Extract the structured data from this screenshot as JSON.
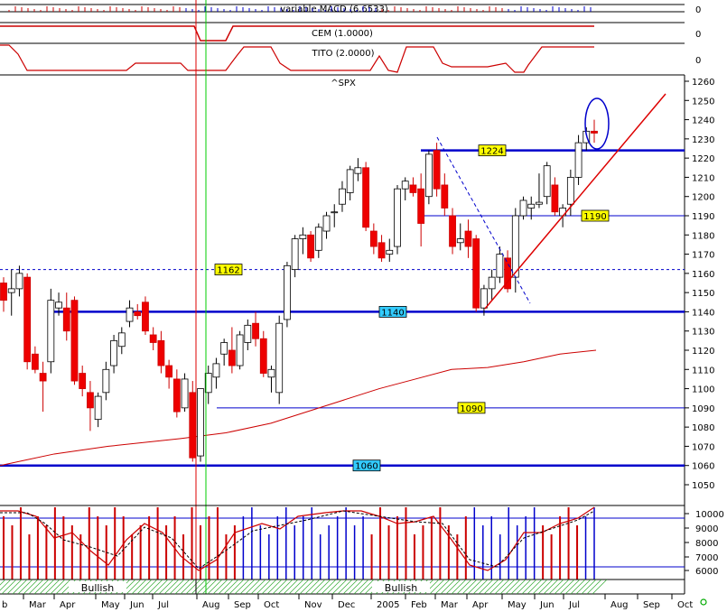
{
  "chart_data": {
    "type": "candlestick",
    "title": "^SPX",
    "indicators": [
      {
        "name": "variable MACD (6.6533)",
        "scale_label": "0"
      },
      {
        "name": "CEM (1.0000)",
        "scale_label": "0"
      },
      {
        "name": "TITO (2.0000)",
        "scale_label": "0"
      }
    ],
    "price_axis": {
      "ylim": [
        1040,
        1262
      ],
      "ticks": [
        1050,
        1060,
        1070,
        1080,
        1090,
        1100,
        1110,
        1120,
        1130,
        1140,
        1150,
        1160,
        1170,
        1180,
        1190,
        1200,
        1210,
        1220,
        1230,
        1240,
        1250,
        1260
      ]
    },
    "volume_axis": {
      "ticks": [
        "10000",
        "9000",
        "8000",
        "7000",
        "6000"
      ]
    },
    "x_labels": [
      "b",
      "Mar",
      "Apr",
      "May",
      "Jun",
      "Jul",
      "Aug",
      "Sep",
      "Oct",
      "Nov",
      "Dec",
      "2005",
      "Feb",
      "Mar",
      "Apr",
      "May",
      "Jun",
      "Jul",
      "Aug",
      "Sep",
      "Oct"
    ],
    "bullish_labels": [
      "Bullish",
      "Bullish"
    ],
    "levels": [
      {
        "label": "1224",
        "value": 1224,
        "style": "thick-blue",
        "tag": "yellow"
      },
      {
        "label": "1190",
        "value": 1190,
        "style": "thin-blue",
        "tag": "yellow"
      },
      {
        "label": "1162",
        "value": 1162,
        "style": "dashed-blue",
        "tag": "yellow"
      },
      {
        "label": "1140",
        "value": 1140,
        "style": "thick-blue",
        "tag": "cyan"
      },
      {
        "label": "1090",
        "value": 1090,
        "style": "thin-blue",
        "tag": "yellow"
      },
      {
        "label": "1060",
        "value": 1060,
        "style": "thick-blue",
        "tag": "cyan"
      }
    ],
    "candles": [
      {
        "o": 1155,
        "h": 1158,
        "l": 1140,
        "c": 1146
      },
      {
        "o": 1150,
        "h": 1162,
        "l": 1138,
        "c": 1152
      },
      {
        "o": 1152,
        "h": 1164,
        "l": 1148,
        "c": 1160
      },
      {
        "o": 1158,
        "h": 1160,
        "l": 1110,
        "c": 1114
      },
      {
        "o": 1118,
        "h": 1122,
        "l": 1108,
        "c": 1110
      },
      {
        "o": 1108,
        "h": 1114,
        "l": 1088,
        "c": 1104
      },
      {
        "o": 1114,
        "h": 1152,
        "l": 1108,
        "c": 1146
      },
      {
        "o": 1142,
        "h": 1150,
        "l": 1138,
        "c": 1145
      },
      {
        "o": 1142,
        "h": 1150,
        "l": 1125,
        "c": 1130
      },
      {
        "o": 1146,
        "h": 1148,
        "l": 1102,
        "c": 1104
      },
      {
        "o": 1108,
        "h": 1112,
        "l": 1096,
        "c": 1100
      },
      {
        "o": 1098,
        "h": 1104,
        "l": 1078,
        "c": 1090
      },
      {
        "o": 1084,
        "h": 1098,
        "l": 1080,
        "c": 1096
      },
      {
        "o": 1098,
        "h": 1114,
        "l": 1094,
        "c": 1110
      },
      {
        "o": 1112,
        "h": 1128,
        "l": 1108,
        "c": 1125
      },
      {
        "o": 1122,
        "h": 1132,
        "l": 1118,
        "c": 1129
      },
      {
        "o": 1135,
        "h": 1146,
        "l": 1132,
        "c": 1142
      },
      {
        "o": 1140,
        "h": 1144,
        "l": 1136,
        "c": 1138
      },
      {
        "o": 1145,
        "h": 1148,
        "l": 1128,
        "c": 1130
      },
      {
        "o": 1128,
        "h": 1132,
        "l": 1120,
        "c": 1124
      },
      {
        "o": 1125,
        "h": 1130,
        "l": 1108,
        "c": 1112
      },
      {
        "o": 1112,
        "h": 1115,
        "l": 1100,
        "c": 1106
      },
      {
        "o": 1105,
        "h": 1110,
        "l": 1085,
        "c": 1088
      },
      {
        "o": 1090,
        "h": 1108,
        "l": 1088,
        "c": 1105
      },
      {
        "o": 1098,
        "h": 1104,
        "l": 1062,
        "c": 1064
      },
      {
        "o": 1065,
        "h": 1100,
        "l": 1062,
        "c": 1100
      },
      {
        "o": 1098,
        "h": 1112,
        "l": 1092,
        "c": 1108
      },
      {
        "o": 1106,
        "h": 1116,
        "l": 1100,
        "c": 1113
      },
      {
        "o": 1118,
        "h": 1126,
        "l": 1112,
        "c": 1124
      },
      {
        "o": 1120,
        "h": 1132,
        "l": 1108,
        "c": 1112
      },
      {
        "o": 1112,
        "h": 1130,
        "l": 1110,
        "c": 1128
      },
      {
        "o": 1124,
        "h": 1136,
        "l": 1120,
        "c": 1133
      },
      {
        "o": 1134,
        "h": 1140,
        "l": 1122,
        "c": 1126
      },
      {
        "o": 1126,
        "h": 1130,
        "l": 1106,
        "c": 1108
      },
      {
        "o": 1106,
        "h": 1112,
        "l": 1098,
        "c": 1110
      },
      {
        "o": 1098,
        "h": 1138,
        "l": 1092,
        "c": 1134
      },
      {
        "o": 1136,
        "h": 1166,
        "l": 1132,
        "c": 1164
      },
      {
        "o": 1162,
        "h": 1180,
        "l": 1158,
        "c": 1178
      },
      {
        "o": 1178,
        "h": 1184,
        "l": 1170,
        "c": 1180
      },
      {
        "o": 1180,
        "h": 1182,
        "l": 1166,
        "c": 1168
      },
      {
        "o": 1172,
        "h": 1186,
        "l": 1168,
        "c": 1184
      },
      {
        "o": 1182,
        "h": 1192,
        "l": 1178,
        "c": 1190
      },
      {
        "o": 1192,
        "h": 1196,
        "l": 1184,
        "c": 1192
      },
      {
        "o": 1196,
        "h": 1208,
        "l": 1192,
        "c": 1204
      },
      {
        "o": 1202,
        "h": 1216,
        "l": 1198,
        "c": 1214
      },
      {
        "o": 1212,
        "h": 1220,
        "l": 1208,
        "c": 1215
      },
      {
        "o": 1215,
        "h": 1218,
        "l": 1182,
        "c": 1184
      },
      {
        "o": 1182,
        "h": 1186,
        "l": 1170,
        "c": 1174
      },
      {
        "o": 1176,
        "h": 1180,
        "l": 1166,
        "c": 1168
      },
      {
        "o": 1170,
        "h": 1178,
        "l": 1166,
        "c": 1172
      },
      {
        "o": 1174,
        "h": 1206,
        "l": 1170,
        "c": 1204
      },
      {
        "o": 1204,
        "h": 1210,
        "l": 1198,
        "c": 1208
      },
      {
        "o": 1206,
        "h": 1210,
        "l": 1200,
        "c": 1202
      },
      {
        "o": 1204,
        "h": 1212,
        "l": 1174,
        "c": 1186
      },
      {
        "o": 1200,
        "h": 1224,
        "l": 1196,
        "c": 1222
      },
      {
        "o": 1224,
        "h": 1228,
        "l": 1200,
        "c": 1204
      },
      {
        "o": 1206,
        "h": 1212,
        "l": 1190,
        "c": 1194
      },
      {
        "o": 1190,
        "h": 1194,
        "l": 1170,
        "c": 1174
      },
      {
        "o": 1176,
        "h": 1186,
        "l": 1172,
        "c": 1178
      },
      {
        "o": 1182,
        "h": 1188,
        "l": 1168,
        "c": 1174
      },
      {
        "o": 1178,
        "h": 1180,
        "l": 1140,
        "c": 1142
      },
      {
        "o": 1142,
        "h": 1154,
        "l": 1138,
        "c": 1152
      },
      {
        "o": 1152,
        "h": 1162,
        "l": 1146,
        "c": 1158
      },
      {
        "o": 1158,
        "h": 1174,
        "l": 1155,
        "c": 1170
      },
      {
        "o": 1168,
        "h": 1172,
        "l": 1150,
        "c": 1152
      },
      {
        "o": 1158,
        "h": 1194,
        "l": 1150,
        "c": 1190
      },
      {
        "o": 1190,
        "h": 1200,
        "l": 1188,
        "c": 1198
      },
      {
        "o": 1194,
        "h": 1200,
        "l": 1188,
        "c": 1196
      },
      {
        "o": 1196,
        "h": 1212,
        "l": 1194,
        "c": 1197
      },
      {
        "o": 1200,
        "h": 1218,
        "l": 1196,
        "c": 1216
      },
      {
        "o": 1206,
        "h": 1210,
        "l": 1190,
        "c": 1192
      },
      {
        "o": 1190,
        "h": 1196,
        "l": 1184,
        "c": 1194
      },
      {
        "o": 1196,
        "h": 1214,
        "l": 1190,
        "c": 1210
      },
      {
        "o": 1210,
        "h": 1232,
        "l": 1206,
        "c": 1228
      },
      {
        "o": 1228,
        "h": 1236,
        "l": 1224,
        "c": 1234
      },
      {
        "o": 1234,
        "h": 1240,
        "l": 1228,
        "c": 1233
      }
    ],
    "moving_average": [
      [
        0,
        1060
      ],
      [
        60,
        1066
      ],
      [
        120,
        1070
      ],
      [
        200,
        1074
      ],
      [
        250,
        1077
      ],
      [
        300,
        1082
      ],
      [
        340,
        1088
      ],
      [
        380,
        1094
      ],
      [
        420,
        1100
      ],
      [
        460,
        1105
      ],
      [
        500,
        1110
      ],
      [
        540,
        1111
      ],
      [
        580,
        1114
      ],
      [
        620,
        1118
      ],
      [
        660,
        1120
      ]
    ],
    "volume_bars": [
      5,
      4,
      6,
      3,
      5,
      4,
      6,
      5,
      4,
      3,
      6,
      5,
      4,
      6,
      5,
      3,
      4,
      5,
      6,
      4,
      5,
      3,
      6,
      4,
      5,
      6,
      3,
      4,
      5,
      6,
      4,
      3,
      5,
      6,
      4,
      5,
      6,
      3,
      4,
      5,
      6,
      4,
      5,
      3,
      6,
      4,
      5,
      6,
      3,
      4,
      5,
      6,
      4,
      3,
      5,
      6,
      4,
      5,
      3,
      6,
      4,
      5,
      6,
      4,
      3,
      5,
      6,
      4,
      5,
      6
    ]
  }
}
